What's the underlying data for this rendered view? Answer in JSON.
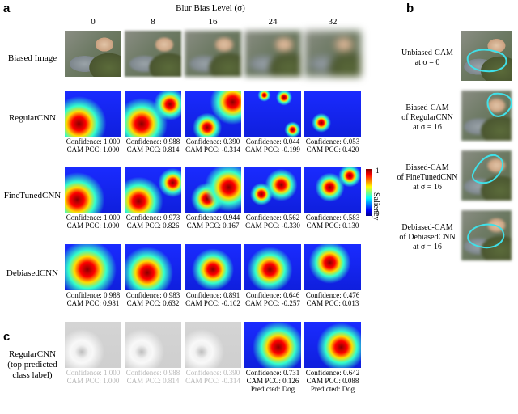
{
  "panels": {
    "a": "a",
    "b": "b",
    "c": "c"
  },
  "header": {
    "title": "Blur Bias Level (σ)",
    "levels": [
      "0",
      "8",
      "16",
      "24",
      "32"
    ]
  },
  "rows": [
    {
      "label": "Biased Image",
      "captions": []
    },
    {
      "label": "RegularCNN",
      "captions": [
        {
          "conf": "Confidence: 1.000",
          "pcc": "CAM PCC: 1.000"
        },
        {
          "conf": "Confidence: 0.988",
          "pcc": "CAM PCC: 0.814"
        },
        {
          "conf": "Confidence: 0.390",
          "pcc": "CAM PCC: -0.314"
        },
        {
          "conf": "Confidence: 0.044",
          "pcc": "CAM PCC: -0.199"
        },
        {
          "conf": "Confidence: 0.053",
          "pcc": "CAM PCC: 0.420"
        }
      ]
    },
    {
      "label": "FineTunedCNN",
      "captions": [
        {
          "conf": "Confidence: 1.000",
          "pcc": "CAM PCC: 1.000"
        },
        {
          "conf": "Confidence: 0.973",
          "pcc": "CAM PCC: 0.826"
        },
        {
          "conf": "Confidence: 0.944",
          "pcc": "CAM PCC: 0.167"
        },
        {
          "conf": "Confidence: 0.562",
          "pcc": "CAM PCC: -0.330"
        },
        {
          "conf": "Confidence: 0.583",
          "pcc": "CAM PCC: 0.130"
        }
      ]
    },
    {
      "label": "DebiasedCNN",
      "captions": [
        {
          "conf": "Confidence: 0.988",
          "pcc": "CAM PCC: 0.981"
        },
        {
          "conf": "Confidence: 0.983",
          "pcc": "CAM PCC: 0.632"
        },
        {
          "conf": "Confidence: 0.891",
          "pcc": "CAM PCC: -0.102"
        },
        {
          "conf": "Confidence: 0.646",
          "pcc": "CAM PCC: -0.257"
        },
        {
          "conf": "Confidence: 0.476",
          "pcc": "CAM PCC: 0.013"
        }
      ]
    }
  ],
  "colorbar": {
    "label": "Saliency",
    "max": "1",
    "min": "0"
  },
  "panel_c": {
    "label_lines": [
      "RegularCNN",
      "(top predicted",
      "class label)"
    ],
    "captions": [
      {
        "conf": "Confidence: 1.000",
        "pcc": "CAM PCC: 1.000",
        "pred": ""
      },
      {
        "conf": "Confidence: 0.988",
        "pcc": "CAM PCC: 0.814",
        "pred": ""
      },
      {
        "conf": "Confidence: 0.390",
        "pcc": "CAM PCC: -0.314",
        "pred": ""
      },
      {
        "conf": "Confidence: 0.731",
        "pcc": "CAM PCC: 0.126",
        "pred": "Predicted: Dog"
      },
      {
        "conf": "Confidence: 0.642",
        "pcc": "CAM PCC: 0.088",
        "pred": "Predicted: Dog"
      }
    ]
  },
  "panel_b": [
    {
      "lines": [
        "Unbiased-CAM",
        "at σ = 0"
      ]
    },
    {
      "lines": [
        "Biased-CAM",
        "of RegularCNN",
        "at σ = 16"
      ]
    },
    {
      "lines": [
        "Biased-CAM",
        "of FineTunedCNN",
        "at σ = 16"
      ]
    },
    {
      "lines": [
        "Debiased-CAM",
        "of DebiasedCNN",
        "at σ = 16"
      ]
    }
  ],
  "colors": {
    "jet_low": "#1a1aff",
    "jet_high": "#ff1a00",
    "outline": "#40e0e8"
  }
}
